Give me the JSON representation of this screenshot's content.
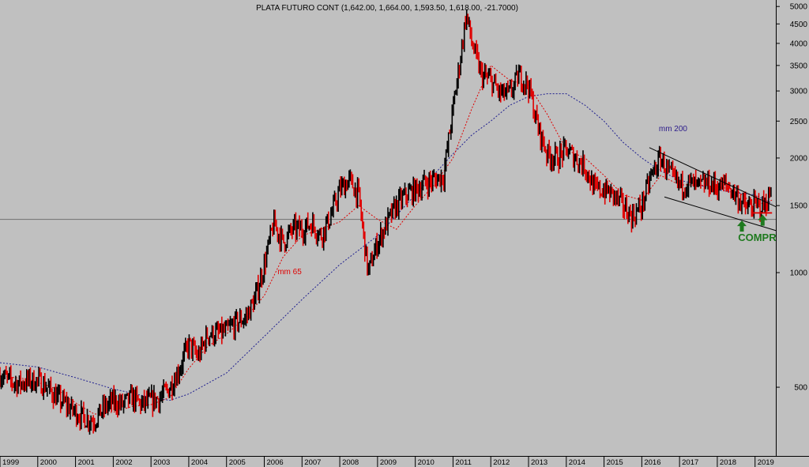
{
  "chart_data": {
    "type": "line",
    "title": "PLATA FUTURO CONT (1,642.00, 1,664.00, 1,593.50, 1,618.00, -21.7000)",
    "y_scale": "log",
    "ylim": [
      330,
      5200
    ],
    "xlim": [
      1999.0,
      2019.55
    ],
    "y_ticks": [
      5000,
      4500,
      4000,
      3500,
      3000,
      2500,
      2000,
      1500,
      1000,
      500
    ],
    "x_ticks": [
      "1999",
      "2000",
      "2001",
      "2002",
      "2003",
      "2004",
      "2005",
      "2006",
      "2007",
      "2008",
      "2009",
      "2010",
      "2011",
      "2012",
      "2013",
      "2014",
      "2015",
      "2016",
      "2017",
      "2018",
      "2019"
    ],
    "horizontal_line": 1380,
    "grid": false,
    "series": [
      {
        "name": "",
        "color": "#000000",
        "highlight_color": "#e00000",
        "x": [
          1999.0,
          1999.25,
          1999.5,
          1999.75,
          2000.0,
          2000.25,
          2000.5,
          2000.75,
          2001.0,
          2001.25,
          2001.5,
          2001.75,
          2002.0,
          2002.25,
          2002.5,
          2002.75,
          2003.0,
          2003.25,
          2003.5,
          2003.75,
          2004.0,
          2004.25,
          2004.5,
          2004.75,
          2005.0,
          2005.25,
          2005.5,
          2005.75,
          2006.0,
          2006.25,
          2006.5,
          2006.75,
          2007.0,
          2007.25,
          2007.5,
          2007.75,
          2008.0,
          2008.25,
          2008.5,
          2008.75,
          2009.0,
          2009.25,
          2009.5,
          2009.75,
          2010.0,
          2010.25,
          2010.5,
          2010.75,
          2011.0,
          2011.2,
          2011.35,
          2011.5,
          2011.75,
          2012.0,
          2012.25,
          2012.5,
          2012.75,
          2013.0,
          2013.25,
          2013.5,
          2013.75,
          2014.0,
          2014.25,
          2014.5,
          2014.75,
          2015.0,
          2015.25,
          2015.5,
          2015.75,
          2016.0,
          2016.25,
          2016.5,
          2016.75,
          2017.0,
          2017.25,
          2017.5,
          2017.75,
          2018.0,
          2018.25,
          2018.5,
          2018.75,
          2019.0,
          2019.25,
          2019.45
        ],
        "values": [
          540,
          520,
          510,
          520,
          520,
          500,
          470,
          450,
          430,
          415,
          410,
          440,
          460,
          450,
          470,
          450,
          460,
          470,
          500,
          560,
          650,
          600,
          690,
          690,
          700,
          740,
          760,
          850,
          1050,
          1350,
          1200,
          1300,
          1300,
          1350,
          1250,
          1400,
          1650,
          1750,
          1600,
          1000,
          1200,
          1350,
          1500,
          1600,
          1650,
          1720,
          1750,
          1800,
          2700,
          3700,
          4800,
          4000,
          3300,
          3200,
          2950,
          2950,
          3300,
          3100,
          2400,
          2050,
          2000,
          2100,
          2000,
          1900,
          1650,
          1650,
          1600,
          1500,
          1400,
          1500,
          1800,
          2000,
          1800,
          1700,
          1720,
          1680,
          1720,
          1680,
          1700,
          1600,
          1480,
          1500,
          1500,
          1640
        ]
      },
      {
        "name": "mm 65",
        "color": "#e00000",
        "x": [
          1999.0,
          1999.75,
          2000.5,
          2001.0,
          2001.5,
          2002.0,
          2002.5,
          2003.0,
          2003.5,
          2004.0,
          2004.5,
          2005.0,
          2005.5,
          2006.0,
          2006.5,
          2007.0,
          2007.5,
          2008.0,
          2008.5,
          2009.0,
          2009.5,
          2010.0,
          2010.5,
          2011.0,
          2011.5,
          2012.0,
          2012.5,
          2013.0,
          2013.5,
          2014.0,
          2014.5,
          2015.0,
          2015.5,
          2016.0,
          2016.5,
          2017.0,
          2017.5,
          2018.0,
          2018.5,
          2019.0,
          2019.45
        ],
        "values": [
          535,
          525,
          495,
          455,
          425,
          430,
          445,
          450,
          470,
          560,
          640,
          690,
          760,
          870,
          1100,
          1250,
          1300,
          1360,
          1500,
          1380,
          1300,
          1500,
          1700,
          2000,
          2700,
          3500,
          3200,
          3100,
          2600,
          2100,
          2000,
          1800,
          1600,
          1550,
          1800,
          1700,
          1700,
          1680,
          1650,
          1500,
          1550
        ]
      },
      {
        "name": "mm 200",
        "color": "#1f1f8f",
        "x": [
          1999.0,
          2000.0,
          2001.0,
          2002.0,
          2003.0,
          2003.5,
          2004.0,
          2005.0,
          2006.0,
          2007.0,
          2008.0,
          2009.0,
          2010.0,
          2011.0,
          2011.5,
          2012.0,
          2012.5,
          2013.0,
          2013.5,
          2014.0,
          2014.5,
          2015.0,
          2015.5,
          2016.0,
          2016.5,
          2017.0,
          2017.5,
          2018.0,
          2018.5,
          2019.0,
          2019.45
        ],
        "values": [
          580,
          565,
          530,
          495,
          470,
          462,
          480,
          545,
          680,
          850,
          1050,
          1250,
          1600,
          2050,
          2300,
          2500,
          2750,
          2900,
          2950,
          2950,
          2750,
          2500,
          2200,
          2000,
          1850,
          1750,
          1700,
          1650,
          1620,
          1600,
          1520
        ]
      }
    ],
    "trendlines": [
      {
        "x": [
          2016.2,
          2019.55
        ],
        "values": [
          2130,
          1490
        ]
      },
      {
        "x": [
          2016.6,
          2019.55
        ],
        "values": [
          1580,
          1290
        ]
      }
    ],
    "annotations": [
      {
        "text": "mm 200",
        "x": 2016.45,
        "y": 2350,
        "color": "#2a1a8a"
      },
      {
        "text": "mm 65",
        "x": 2006.35,
        "y": 990,
        "color": "#e00000"
      },
      {
        "text": "COMPRAR",
        "x": 2018.55,
        "y": 1210,
        "color": "#1f7a1f"
      }
    ],
    "markers": [
      {
        "kind": "arrow-up",
        "x": 2018.65,
        "y": 1370,
        "color": "#1f7a1f"
      },
      {
        "kind": "arrow-up",
        "x": 2019.2,
        "y": 1420,
        "color": "#1f7a1f"
      },
      {
        "kind": "hline-red",
        "x": [
          2018.95,
          2019.45
        ],
        "y": 1435,
        "color": "#e00000"
      }
    ]
  }
}
